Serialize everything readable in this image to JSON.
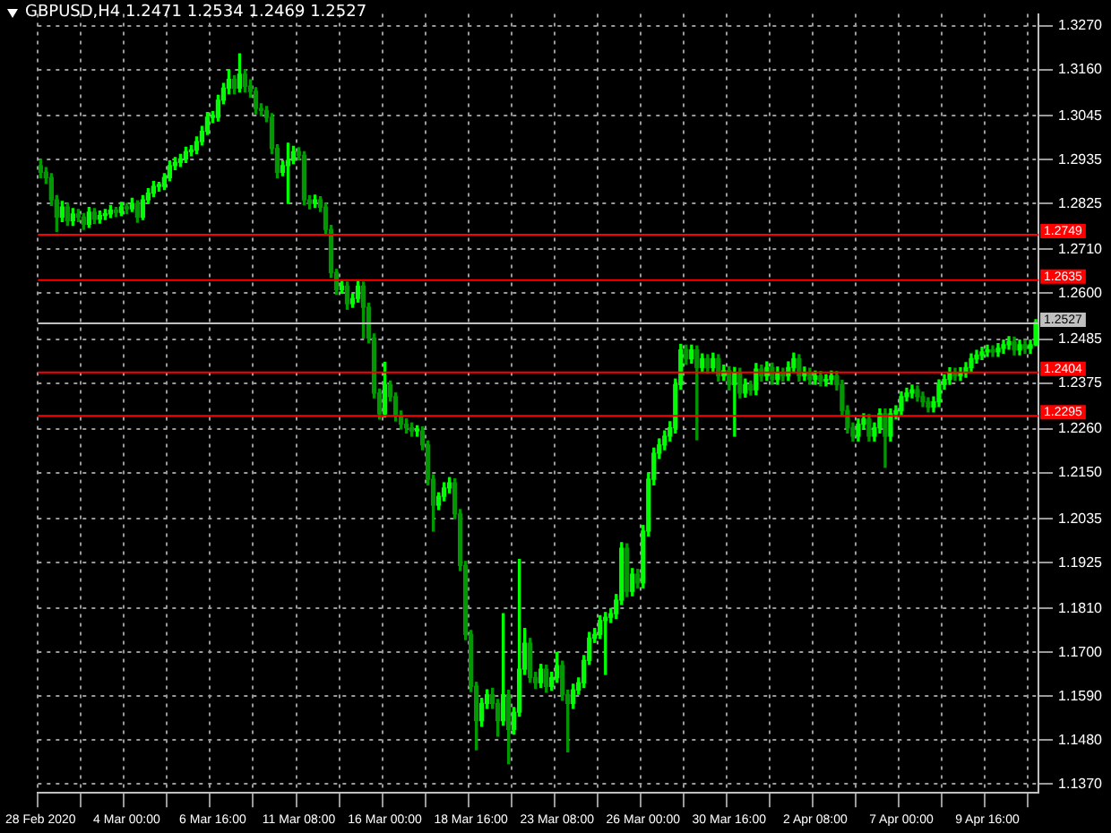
{
  "chart_data": {
    "type": "candlestick",
    "title": "GBPUSD,H4 1.2471 1.2534 1.2469 1.2527",
    "categories": [
      "28 Feb 2020",
      null,
      null,
      null,
      null,
      null,
      null,
      null,
      null,
      null,
      null,
      null,
      null,
      null,
      null,
      null,
      "4 Mar 00:00",
      null,
      null,
      null,
      null,
      null,
      null,
      null,
      null,
      null,
      null,
      null,
      null,
      null,
      null,
      null,
      "6 Mar 16:00",
      null,
      null,
      null,
      null,
      null,
      null,
      null,
      null,
      null,
      null,
      null,
      null,
      null,
      null,
      null,
      "11 Mar 08:00",
      null,
      null,
      null,
      null,
      null,
      null,
      null,
      null,
      null,
      null,
      null,
      null,
      null,
      null,
      null,
      "16 Mar 00:00",
      null,
      null,
      null,
      null,
      null,
      null,
      null,
      null,
      null,
      null,
      null,
      null,
      null,
      null,
      null,
      "18 Mar 16:00",
      null,
      null,
      null,
      null,
      null,
      null,
      null,
      null,
      null,
      null,
      null,
      null,
      null,
      null,
      null,
      "23 Mar 08:00",
      null,
      null,
      null,
      null,
      null,
      null,
      null,
      null,
      null,
      null,
      null,
      null,
      null,
      null,
      null,
      "26 Mar 00:00",
      null,
      null,
      null,
      null,
      null,
      null,
      null,
      null,
      null,
      null,
      null,
      null,
      null,
      null,
      null,
      "30 Mar 16:00",
      null,
      null,
      null,
      null,
      null,
      null,
      null,
      null,
      null,
      null,
      null,
      null,
      null,
      null,
      null,
      "2 Apr 08:00",
      null,
      null,
      null,
      null,
      null,
      null,
      null,
      null,
      null,
      null,
      null,
      null,
      null,
      null,
      null,
      "7 Apr 00:00",
      null,
      null,
      null,
      null,
      null,
      null,
      null,
      null,
      null,
      null,
      null,
      null,
      null,
      null,
      null,
      "9 Apr 16:00",
      null,
      null,
      null,
      null,
      null,
      null,
      null,
      null,
      null
    ],
    "ohlc": [
      [
        1.292,
        1.2935,
        1.289,
        1.2903
      ],
      [
        1.2903,
        1.2915,
        1.2875,
        1.289
      ],
      [
        1.289,
        1.29,
        1.282,
        1.2834
      ],
      [
        1.2834,
        1.2845,
        1.2755,
        1.2791
      ],
      [
        1.2791,
        1.283,
        1.278,
        1.2816
      ],
      [
        1.2816,
        1.2825,
        1.277,
        1.2782
      ],
      [
        1.2782,
        1.2812,
        1.277,
        1.2799
      ],
      [
        1.2799,
        1.281,
        1.278,
        1.2791
      ],
      [
        1.2791,
        1.28,
        1.276,
        1.2773
      ],
      [
        1.2773,
        1.2815,
        1.2765,
        1.2803
      ],
      [
        1.2803,
        1.2812,
        1.2775,
        1.2786
      ],
      [
        1.2786,
        1.2806,
        1.2776,
        1.2795
      ],
      [
        1.2795,
        1.281,
        1.2785,
        1.2799
      ],
      [
        1.2799,
        1.282,
        1.279,
        1.2808
      ],
      [
        1.2808,
        1.2815,
        1.2792,
        1.2803
      ],
      [
        1.2803,
        1.2828,
        1.2795,
        1.2816
      ],
      [
        1.2816,
        1.2825,
        1.28,
        1.2812
      ],
      [
        1.2812,
        1.2838,
        1.2805,
        1.2825
      ],
      [
        1.2825,
        1.2832,
        1.2778,
        1.2791
      ],
      [
        1.2791,
        1.2845,
        1.2785,
        1.2834
      ],
      [
        1.2834,
        1.2862,
        1.2826,
        1.2851
      ],
      [
        1.2851,
        1.288,
        1.2842,
        1.2868
      ],
      [
        1.2868,
        1.2878,
        1.2856,
        1.2868
      ],
      [
        1.2868,
        1.29,
        1.286,
        1.289
      ],
      [
        1.289,
        1.2932,
        1.2882,
        1.292
      ],
      [
        1.292,
        1.294,
        1.291,
        1.2928
      ],
      [
        1.2928,
        1.2948,
        1.2918,
        1.2937
      ],
      [
        1.2937,
        1.2966,
        1.2928,
        1.2955
      ],
      [
        1.2955,
        1.297,
        1.2945,
        1.2959
      ],
      [
        1.2959,
        1.2992,
        1.295,
        1.298
      ],
      [
        1.298,
        1.3018,
        1.2972,
        1.3006
      ],
      [
        1.3006,
        1.3053,
        1.2998,
        1.3041
      ],
      [
        1.3041,
        1.3055,
        1.3028,
        1.3041
      ],
      [
        1.3041,
        1.3096,
        1.3032,
        1.3084
      ],
      [
        1.3084,
        1.3126,
        1.3075,
        1.3114
      ],
      [
        1.3114,
        1.316,
        1.31,
        1.3136
      ],
      [
        1.3136,
        1.3145,
        1.31,
        1.3114
      ],
      [
        1.3114,
        1.32,
        1.3105,
        1.3149
      ],
      [
        1.3149,
        1.316,
        1.3105,
        1.3119
      ],
      [
        1.3119,
        1.3135,
        1.3092,
        1.3106
      ],
      [
        1.3106,
        1.3115,
        1.305,
        1.3063
      ],
      [
        1.3063,
        1.3075,
        1.3045,
        1.3058
      ],
      [
        1.3058,
        1.3068,
        1.303,
        1.3041
      ],
      [
        1.3041,
        1.305,
        1.295,
        1.2963
      ],
      [
        1.2963,
        1.2972,
        1.289,
        1.2903
      ],
      [
        1.2903,
        1.2932,
        1.2895,
        1.292
      ],
      [
        1.292,
        1.2976,
        1.2825,
        1.2933
      ],
      [
        1.2933,
        1.2968,
        1.2925,
        1.2955
      ],
      [
        1.2955,
        1.2965,
        1.2935,
        1.2946
      ],
      [
        1.2946,
        1.2955,
        1.2822,
        1.2834
      ],
      [
        1.2834,
        1.2845,
        1.2812,
        1.2825
      ],
      [
        1.2825,
        1.2846,
        1.2815,
        1.2834
      ],
      [
        1.2834,
        1.2842,
        1.2805,
        1.2816
      ],
      [
        1.2816,
        1.2825,
        1.2748,
        1.276
      ],
      [
        1.276,
        1.277,
        1.264,
        1.2652
      ],
      [
        1.2652,
        1.266,
        1.2598,
        1.2609
      ],
      [
        1.2609,
        1.263,
        1.26,
        1.2618
      ],
      [
        1.2618,
        1.2628,
        1.256,
        1.2574
      ],
      [
        1.2574,
        1.2598,
        1.2565,
        1.2587
      ],
      [
        1.2587,
        1.263,
        1.2578,
        1.2618
      ],
      [
        1.2618,
        1.2628,
        1.2488,
        1.2565
      ],
      [
        1.2565,
        1.2575,
        1.2476,
        1.2488
      ],
      [
        1.2488,
        1.2498,
        1.2338,
        1.235
      ],
      [
        1.235,
        1.236,
        1.2285,
        1.2298
      ],
      [
        1.2298,
        1.2427,
        1.229,
        1.2371
      ],
      [
        1.2371,
        1.238,
        1.233,
        1.2341
      ],
      [
        1.2341,
        1.235,
        1.228,
        1.2293
      ],
      [
        1.2293,
        1.2305,
        1.226,
        1.2272
      ],
      [
        1.2272,
        1.2285,
        1.225,
        1.2263
      ],
      [
        1.2263,
        1.2275,
        1.2242,
        1.2255
      ],
      [
        1.2255,
        1.2268,
        1.2242,
        1.2255
      ],
      [
        1.2255,
        1.2265,
        1.2208,
        1.222
      ],
      [
        1.222,
        1.223,
        1.212,
        1.2134
      ],
      [
        1.2134,
        1.2145,
        1.2004,
        1.2069
      ],
      [
        1.2069,
        1.21,
        1.2058,
        1.2091
      ],
      [
        1.2091,
        1.2125,
        1.208,
        1.2112
      ],
      [
        1.2112,
        1.2138,
        1.21,
        1.2125
      ],
      [
        1.2125,
        1.2135,
        1.2035,
        1.2047
      ],
      [
        1.2047,
        1.2058,
        1.1905,
        1.1918
      ],
      [
        1.1918,
        1.1928,
        1.1732,
        1.1745
      ],
      [
        1.1745,
        1.1755,
        1.1602,
        1.1615
      ],
      [
        1.1615,
        1.1625,
        1.1456,
        1.1529
      ],
      [
        1.1529,
        1.1585,
        1.1515,
        1.1572
      ],
      [
        1.1572,
        1.1606,
        1.156,
        1.1594
      ],
      [
        1.1594,
        1.161,
        1.156,
        1.1572
      ],
      [
        1.1572,
        1.1582,
        1.149,
        1.1529
      ],
      [
        1.1529,
        1.1797,
        1.1518,
        1.1594
      ],
      [
        1.1594,
        1.1605,
        1.1421,
        1.1507
      ],
      [
        1.1507,
        1.1562,
        1.1495,
        1.155
      ],
      [
        1.155,
        1.1933,
        1.154,
        1.1658
      ],
      [
        1.1658,
        1.176,
        1.1645,
        1.1723
      ],
      [
        1.1723,
        1.1735,
        1.1625,
        1.1637
      ],
      [
        1.1637,
        1.165,
        1.161,
        1.1624
      ],
      [
        1.1624,
        1.167,
        1.1612,
        1.1658
      ],
      [
        1.1658,
        1.1668,
        1.16,
        1.1615
      ],
      [
        1.1615,
        1.165,
        1.1605,
        1.1637
      ],
      [
        1.1637,
        1.17,
        1.1625,
        1.1667
      ],
      [
        1.1667,
        1.1678,
        1.158,
        1.1594
      ],
      [
        1.1594,
        1.1605,
        1.1451,
        1.1572
      ],
      [
        1.1572,
        1.162,
        1.156,
        1.1606
      ],
      [
        1.1606,
        1.1636,
        1.1595,
        1.1624
      ],
      [
        1.1624,
        1.1692,
        1.1612,
        1.168
      ],
      [
        1.168,
        1.175,
        1.167,
        1.1736
      ],
      [
        1.1736,
        1.176,
        1.1725,
        1.1745
      ],
      [
        1.1745,
        1.1792,
        1.1735,
        1.178
      ],
      [
        1.178,
        1.18,
        1.1645,
        1.1788
      ],
      [
        1.1788,
        1.181,
        1.1775,
        1.1797
      ],
      [
        1.1797,
        1.1845,
        1.1785,
        1.1831
      ],
      [
        1.1831,
        1.1975,
        1.182,
        1.1961
      ],
      [
        1.1961,
        1.1972,
        1.184,
        1.1853
      ],
      [
        1.1853,
        1.191,
        1.1842,
        1.1896
      ],
      [
        1.1896,
        1.1908,
        1.1862,
        1.1874
      ],
      [
        1.1874,
        1.2018,
        1.1862,
        1.2004
      ],
      [
        1.2004,
        1.2148,
        1.1992,
        1.2134
      ],
      [
        1.2134,
        1.2212,
        1.212,
        1.2199
      ],
      [
        1.2199,
        1.2235,
        1.2186,
        1.222
      ],
      [
        1.222,
        1.2255,
        1.2208,
        1.2242
      ],
      [
        1.2242,
        1.2278,
        1.223,
        1.2263
      ],
      [
        1.2263,
        1.2385,
        1.225,
        1.2371
      ],
      [
        1.2371,
        1.2472,
        1.236,
        1.2458
      ],
      [
        1.2458,
        1.247,
        1.2422,
        1.2436
      ],
      [
        1.2436,
        1.247,
        1.2425,
        1.2458
      ],
      [
        1.2458,
        1.2468,
        1.2233,
        1.2414
      ],
      [
        1.2414,
        1.2448,
        1.2402,
        1.2436
      ],
      [
        1.2436,
        1.2446,
        1.24,
        1.2414
      ],
      [
        1.2414,
        1.245,
        1.2402,
        1.2436
      ],
      [
        1.2436,
        1.2446,
        1.238,
        1.2393
      ],
      [
        1.2393,
        1.242,
        1.2382,
        1.2406
      ],
      [
        1.2406,
        1.2416,
        1.2358,
        1.2371
      ],
      [
        1.2371,
        1.2414,
        1.2242,
        1.2401
      ],
      [
        1.2401,
        1.2412,
        1.2338,
        1.235
      ],
      [
        1.235,
        1.2385,
        1.234,
        1.2371
      ],
      [
        1.2371,
        1.238,
        1.2345,
        1.2358
      ],
      [
        1.2358,
        1.2424,
        1.2346,
        1.241
      ],
      [
        1.241,
        1.242,
        1.238,
        1.2393
      ],
      [
        1.2393,
        1.2428,
        1.2382,
        1.2414
      ],
      [
        1.2414,
        1.2425,
        1.2372,
        1.2384
      ],
      [
        1.2384,
        1.2415,
        1.2372,
        1.2401
      ],
      [
        1.2401,
        1.2412,
        1.238,
        1.2393
      ],
      [
        1.2393,
        1.2428,
        1.2382,
        1.2414
      ],
      [
        1.2414,
        1.245,
        1.2402,
        1.2436
      ],
      [
        1.2436,
        1.2446,
        1.238,
        1.2393
      ],
      [
        1.2393,
        1.2415,
        1.2382,
        1.2401
      ],
      [
        1.2401,
        1.2412,
        1.2372,
        1.2384
      ],
      [
        1.2384,
        1.2405,
        1.2372,
        1.2393
      ],
      [
        1.2393,
        1.2404,
        1.2368,
        1.238
      ],
      [
        1.238,
        1.2396,
        1.2368,
        1.2384
      ],
      [
        1.2384,
        1.2405,
        1.2372,
        1.2393
      ],
      [
        1.2393,
        1.2404,
        1.2358,
        1.2371
      ],
      [
        1.2371,
        1.2382,
        1.2294,
        1.2306
      ],
      [
        1.2306,
        1.2318,
        1.225,
        1.2263
      ],
      [
        1.2263,
        1.2275,
        1.223,
        1.2242
      ],
      [
        1.2242,
        1.2285,
        1.223,
        1.2272
      ],
      [
        1.2272,
        1.2298,
        1.226,
        1.2285
      ],
      [
        1.2285,
        1.2296,
        1.223,
        1.2242
      ],
      [
        1.2242,
        1.2275,
        1.223,
        1.2263
      ],
      [
        1.2263,
        1.231,
        1.225,
        1.2298
      ],
      [
        1.2298,
        1.231,
        1.2164,
        1.2242
      ],
      [
        1.2242,
        1.231,
        1.223,
        1.2298
      ],
      [
        1.2298,
        1.2318,
        1.2285,
        1.2306
      ],
      [
        1.2306,
        1.2353,
        1.2295,
        1.2341
      ],
      [
        1.2341,
        1.2362,
        1.233,
        1.235
      ],
      [
        1.235,
        1.237,
        1.2338,
        1.2358
      ],
      [
        1.2358,
        1.2368,
        1.233,
        1.2341
      ],
      [
        1.2341,
        1.2352,
        1.2316,
        1.2328
      ],
      [
        1.2328,
        1.2338,
        1.2303,
        1.2315
      ],
      [
        1.2315,
        1.234,
        1.2303,
        1.2328
      ],
      [
        1.2328,
        1.2383,
        1.2316,
        1.2371
      ],
      [
        1.2371,
        1.2396,
        1.236,
        1.2384
      ],
      [
        1.2384,
        1.2413,
        1.2372,
        1.2401
      ],
      [
        1.2401,
        1.2412,
        1.2382,
        1.2393
      ],
      [
        1.2393,
        1.2413,
        1.2382,
        1.2401
      ],
      [
        1.2401,
        1.2426,
        1.239,
        1.2414
      ],
      [
        1.2414,
        1.2448,
        1.2402,
        1.2436
      ],
      [
        1.2436,
        1.2457,
        1.2425,
        1.2445
      ],
      [
        1.2445,
        1.2465,
        1.2434,
        1.2453
      ],
      [
        1.2453,
        1.247,
        1.2442,
        1.2458
      ],
      [
        1.2458,
        1.2468,
        1.2442,
        1.2453
      ],
      [
        1.2453,
        1.2474,
        1.2442,
        1.2462
      ],
      [
        1.2462,
        1.2483,
        1.245,
        1.2471
      ],
      [
        1.2471,
        1.2491,
        1.246,
        1.2479
      ],
      [
        1.2479,
        1.249,
        1.2446,
        1.2458
      ],
      [
        1.2458,
        1.2483,
        1.2446,
        1.2471
      ],
      [
        1.2471,
        1.2482,
        1.245,
        1.2462
      ],
      [
        1.2462,
        1.2483,
        1.245,
        1.2471
      ],
      [
        1.2471,
        1.2534,
        1.2469,
        1.2527
      ]
    ],
    "colors": [
      "#009900",
      "#009900",
      "#009900",
      "#009900",
      "#00ff00",
      "#009900",
      "#00ff00",
      "#009900",
      "#009900",
      "#00ff00",
      "#009900",
      "#00ff00",
      "#00ff00",
      "#00ff00",
      "#009900",
      "#00ff00",
      "#009900",
      "#00ff00",
      "#009900",
      "#00ff00",
      "#00ff00",
      "#00ff00",
      "#00ff00",
      "#00ff00",
      "#00ff00",
      "#00ff00",
      "#00ff00",
      "#00ff00",
      "#00ff00",
      "#00ff00",
      "#00ff00",
      "#00ff00",
      "#00ff00",
      "#00ff00",
      "#00ff00",
      "#00ff00",
      "#009900",
      "#00ff00",
      "#009900",
      "#009900",
      "#009900",
      "#009900",
      "#009900",
      "#009900",
      "#009900",
      "#00ff00",
      "#00ff00",
      "#00ff00",
      "#009900",
      "#009900",
      "#009900",
      "#00ff00",
      "#009900",
      "#009900",
      "#009900",
      "#009900",
      "#00ff00",
      "#009900",
      "#00ff00",
      "#00ff00",
      "#009900",
      "#009900",
      "#009900",
      "#009900",
      "#00ff00",
      "#009900",
      "#009900",
      "#009900",
      "#009900",
      "#009900",
      "#00ff00",
      "#009900",
      "#009900",
      "#009900",
      "#00ff00",
      "#00ff00",
      "#00ff00",
      "#009900",
      "#009900",
      "#009900",
      "#009900",
      "#009900",
      "#00ff00",
      "#00ff00",
      "#009900",
      "#009900",
      "#00ff00",
      "#009900",
      "#00ff00",
      "#00ff00",
      "#00ff00",
      "#009900",
      "#009900",
      "#00ff00",
      "#009900",
      "#00ff00",
      "#00ff00",
      "#009900",
      "#009900",
      "#00ff00",
      "#00ff00",
      "#00ff00",
      "#00ff00",
      "#00ff00",
      "#00ff00",
      "#00ff00",
      "#00ff00",
      "#00ff00",
      "#00ff00",
      "#009900",
      "#00ff00",
      "#009900",
      "#00ff00",
      "#00ff00",
      "#00ff00",
      "#00ff00",
      "#00ff00",
      "#00ff00",
      "#00ff00",
      "#00ff00",
      "#009900",
      "#00ff00",
      "#009900",
      "#00ff00",
      "#009900",
      "#00ff00",
      "#009900",
      "#00ff00",
      "#009900",
      "#00ff00",
      "#009900",
      "#00ff00",
      "#009900",
      "#00ff00",
      "#009900",
      "#00ff00",
      "#009900",
      "#00ff00",
      "#009900",
      "#00ff00",
      "#00ff00",
      "#009900",
      "#00ff00",
      "#009900",
      "#00ff00",
      "#009900",
      "#00ff00",
      "#00ff00",
      "#009900",
      "#009900",
      "#009900",
      "#009900",
      "#00ff00",
      "#00ff00",
      "#009900",
      "#00ff00",
      "#00ff00",
      "#009900",
      "#00ff00",
      "#00ff00",
      "#00ff00",
      "#00ff00",
      "#00ff00",
      "#009900",
      "#009900",
      "#009900",
      "#00ff00",
      "#00ff00",
      "#00ff00",
      "#00ff00",
      "#009900",
      "#00ff00",
      "#00ff00",
      "#00ff00",
      "#00ff00",
      "#00ff00",
      "#00ff00",
      "#009900",
      "#00ff00",
      "#00ff00",
      "#00ff00",
      "#009900",
      "#00ff00",
      "#009900",
      "#00ff00",
      "#00ff00"
    ],
    "ylim": [
      1.1348,
      1.33
    ],
    "yticks": [
      {
        "value": 1.137,
        "label": "1.1370"
      },
      {
        "value": 1.148,
        "label": "1.1480"
      },
      {
        "value": 1.159,
        "label": "1.1590"
      },
      {
        "value": 1.17,
        "label": "1.1700"
      },
      {
        "value": 1.181,
        "label": "1.1810"
      },
      {
        "value": 1.1925,
        "label": "1.1925"
      },
      {
        "value": 1.2035,
        "label": "1.2035"
      },
      {
        "value": 1.215,
        "label": "1.2150"
      },
      {
        "value": 1.226,
        "label": "1.2260"
      },
      {
        "value": 1.2375,
        "label": "1.2375"
      },
      {
        "value": 1.2485,
        "label": "1.2485"
      },
      {
        "value": 1.26,
        "label": "1.2600"
      },
      {
        "value": 1.271,
        "label": "1.2710"
      },
      {
        "value": 1.2825,
        "label": "1.2825"
      },
      {
        "value": 1.2935,
        "label": "1.2935"
      },
      {
        "value": 1.3045,
        "label": "1.3045"
      },
      {
        "value": 1.316,
        "label": "1.3160"
      },
      {
        "value": 1.327,
        "label": "1.3270"
      }
    ],
    "grid": true,
    "ref_lines": [
      {
        "axis": "y",
        "value": 1.2749,
        "label": "1.2749",
        "color": "#ff0000"
      },
      {
        "axis": "y",
        "value": 1.2635,
        "label": "1.2635",
        "color": "#ff0000"
      },
      {
        "axis": "y",
        "value": 1.2527,
        "label": "1.2527",
        "color": "#c0c0c0"
      },
      {
        "axis": "y",
        "value": 1.2404,
        "label": "1.2404",
        "color": "#ff0000"
      },
      {
        "axis": "y",
        "value": 1.2295,
        "label": "1.2295",
        "color": "#ff0000"
      }
    ]
  }
}
